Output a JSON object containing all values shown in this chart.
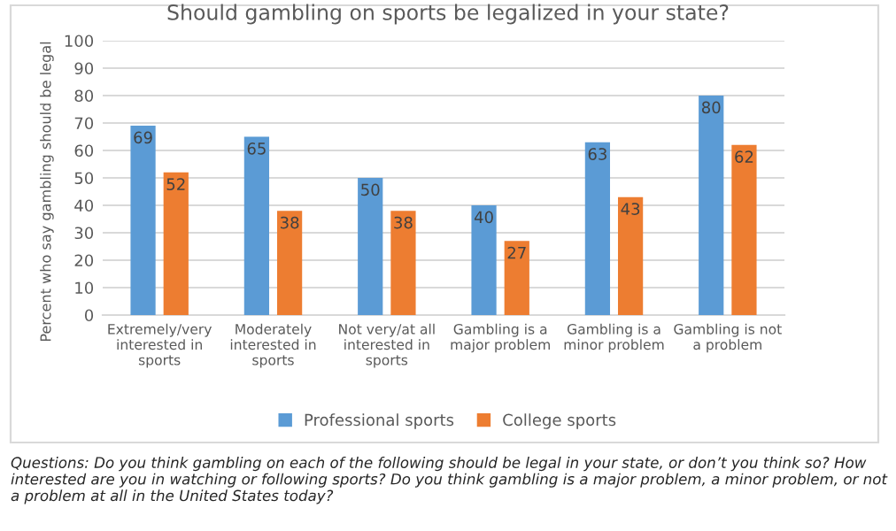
{
  "chart_data": {
    "type": "bar",
    "title": "Should gambling on sports be legalized in your state?",
    "ylabel": "Percent who say gambling should be legal",
    "categories": [
      "Extremely/very\ninterested in\nsports",
      "Moderately\ninterested in\nsports",
      "Not very/at all\ninterested in\nsports",
      "Gambling is a\nmajor problem",
      "Gambling is a\nminor problem",
      "Gambling is not\na problem"
    ],
    "series": [
      {
        "name": "Professional sports",
        "color": "#5b9bd5",
        "values": [
          69,
          65,
          50,
          40,
          63,
          80
        ]
      },
      {
        "name": "College sports",
        "color": "#ed7d31",
        "values": [
          52,
          38,
          38,
          27,
          43,
          62
        ]
      }
    ],
    "ylim": [
      0,
      100
    ],
    "yticks": [
      0,
      10,
      20,
      30,
      40,
      50,
      60,
      70,
      80,
      90,
      100
    ],
    "grid": "y",
    "legend": "bottom",
    "data_labels": true,
    "annotations": [
      "Questions: Do you think gambling on each of the following should be legal in your state, or don’t you think so? How interested are you in watching or following sports? Do you think gambling is a major problem, a minor problem, or not a problem at all in the United States today?"
    ]
  }
}
